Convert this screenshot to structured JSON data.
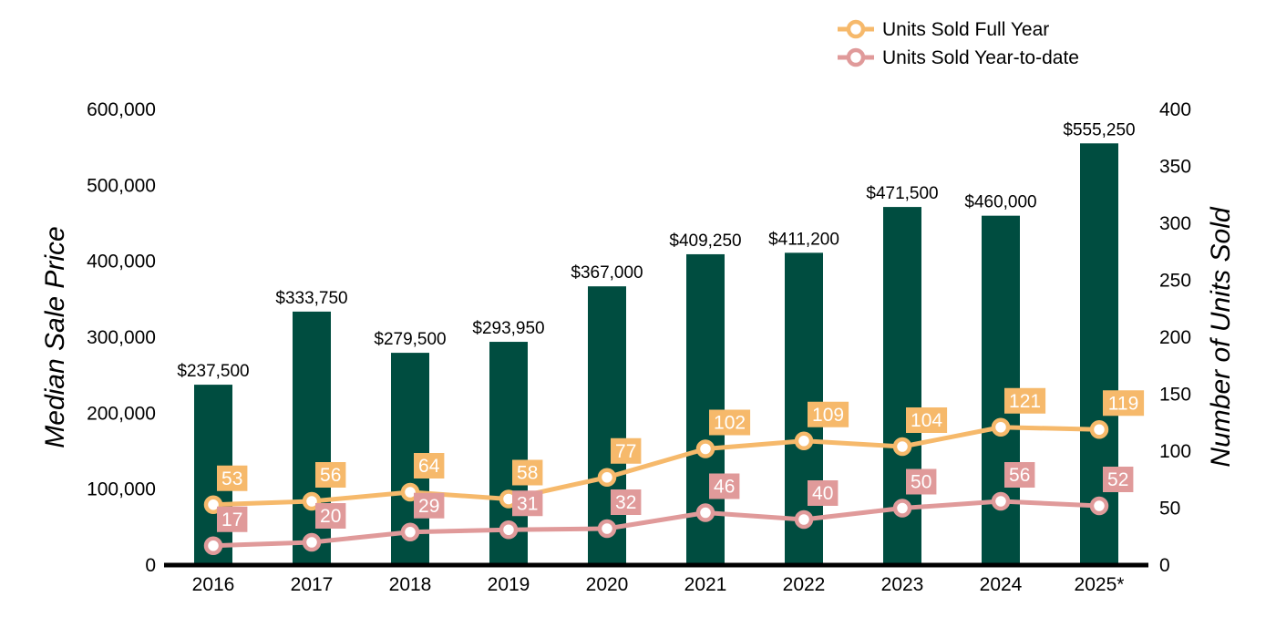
{
  "chart_data": {
    "type": "bar",
    "categories": [
      "2016",
      "2017",
      "2018",
      "2019",
      "2020",
      "2021",
      "2022",
      "2023",
      "2024",
      "2025*"
    ],
    "bars": {
      "values": [
        237500,
        333750,
        279500,
        293950,
        367000,
        409250,
        411200,
        471500,
        460000,
        555250
      ],
      "labels": [
        "$237,500",
        "$333,750",
        "$279,500",
        "$293,950",
        "$367,000",
        "$409,250",
        "$411,200",
        "$471,500",
        "$460,000",
        "$555,250"
      ],
      "color": "#004d40"
    },
    "series": [
      {
        "name": "Units Sold Full Year",
        "type": "line",
        "axis": "right",
        "color": "#f6b96b",
        "values": [
          53,
          56,
          64,
          58,
          77,
          102,
          109,
          104,
          121,
          119
        ]
      },
      {
        "name": "Units Sold Year-to-date",
        "type": "line",
        "axis": "right",
        "color": "#e09a9a",
        "values": [
          17,
          20,
          29,
          31,
          32,
          46,
          40,
          50,
          56,
          52
        ]
      }
    ],
    "ylabel": "Median Sale Price",
    "y2label": "Number of Units Sold",
    "ylim": [
      0,
      600000
    ],
    "y2lim": [
      0,
      400
    ],
    "yticks": [
      "0",
      "100,000",
      "200,000",
      "300,000",
      "400,000",
      "500,000",
      "600,000"
    ],
    "y2ticks": [
      "0",
      "50",
      "100",
      "150",
      "200",
      "250",
      "300",
      "350",
      "400"
    ],
    "grid": false,
    "legend_position": "top-right"
  }
}
